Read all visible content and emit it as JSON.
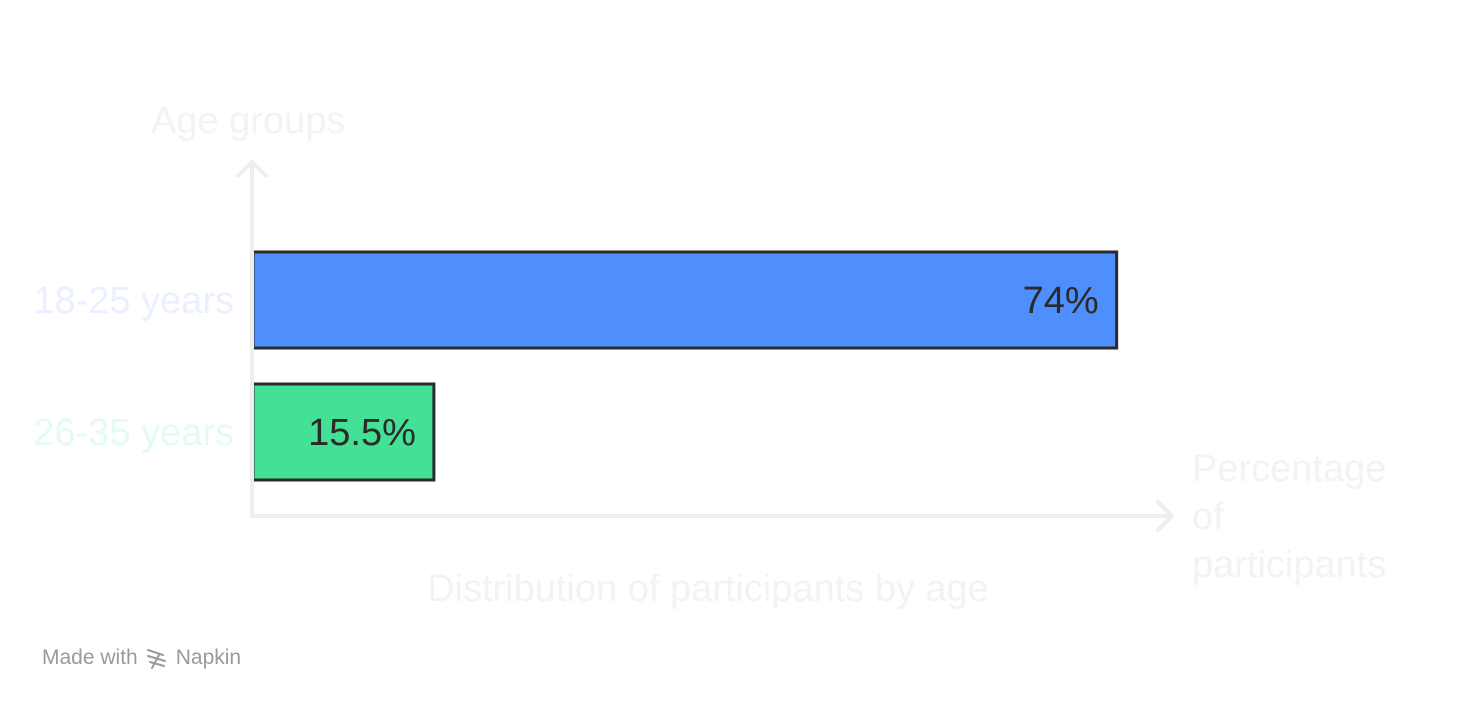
{
  "chart_data": {
    "type": "bar",
    "orientation": "horizontal",
    "title": "Distribution of participants by age",
    "xlabel": "Percentage of participants",
    "ylabel": "Age groups",
    "categories": [
      "18-25 years",
      "26-35 years"
    ],
    "values": [
      74,
      15.5
    ],
    "value_labels": [
      "74%",
      "15.5%"
    ],
    "unit": "%",
    "xlim": [
      0,
      79
    ],
    "grid": false,
    "legend": "none",
    "colors": {
      "bars": [
        "#4f8ffd",
        "#43e095"
      ],
      "category_labels": [
        "#eaf0ff",
        "#e4fbef"
      ],
      "axis": "#eeeeee",
      "axis_text": "#f3f3f3",
      "bar_stroke": "#2a2a2a",
      "value_text": "#2a2a2a"
    }
  },
  "footer": {
    "made_with": "Made with",
    "brand": "Napkin",
    "icon": "napkin-logo-icon"
  }
}
